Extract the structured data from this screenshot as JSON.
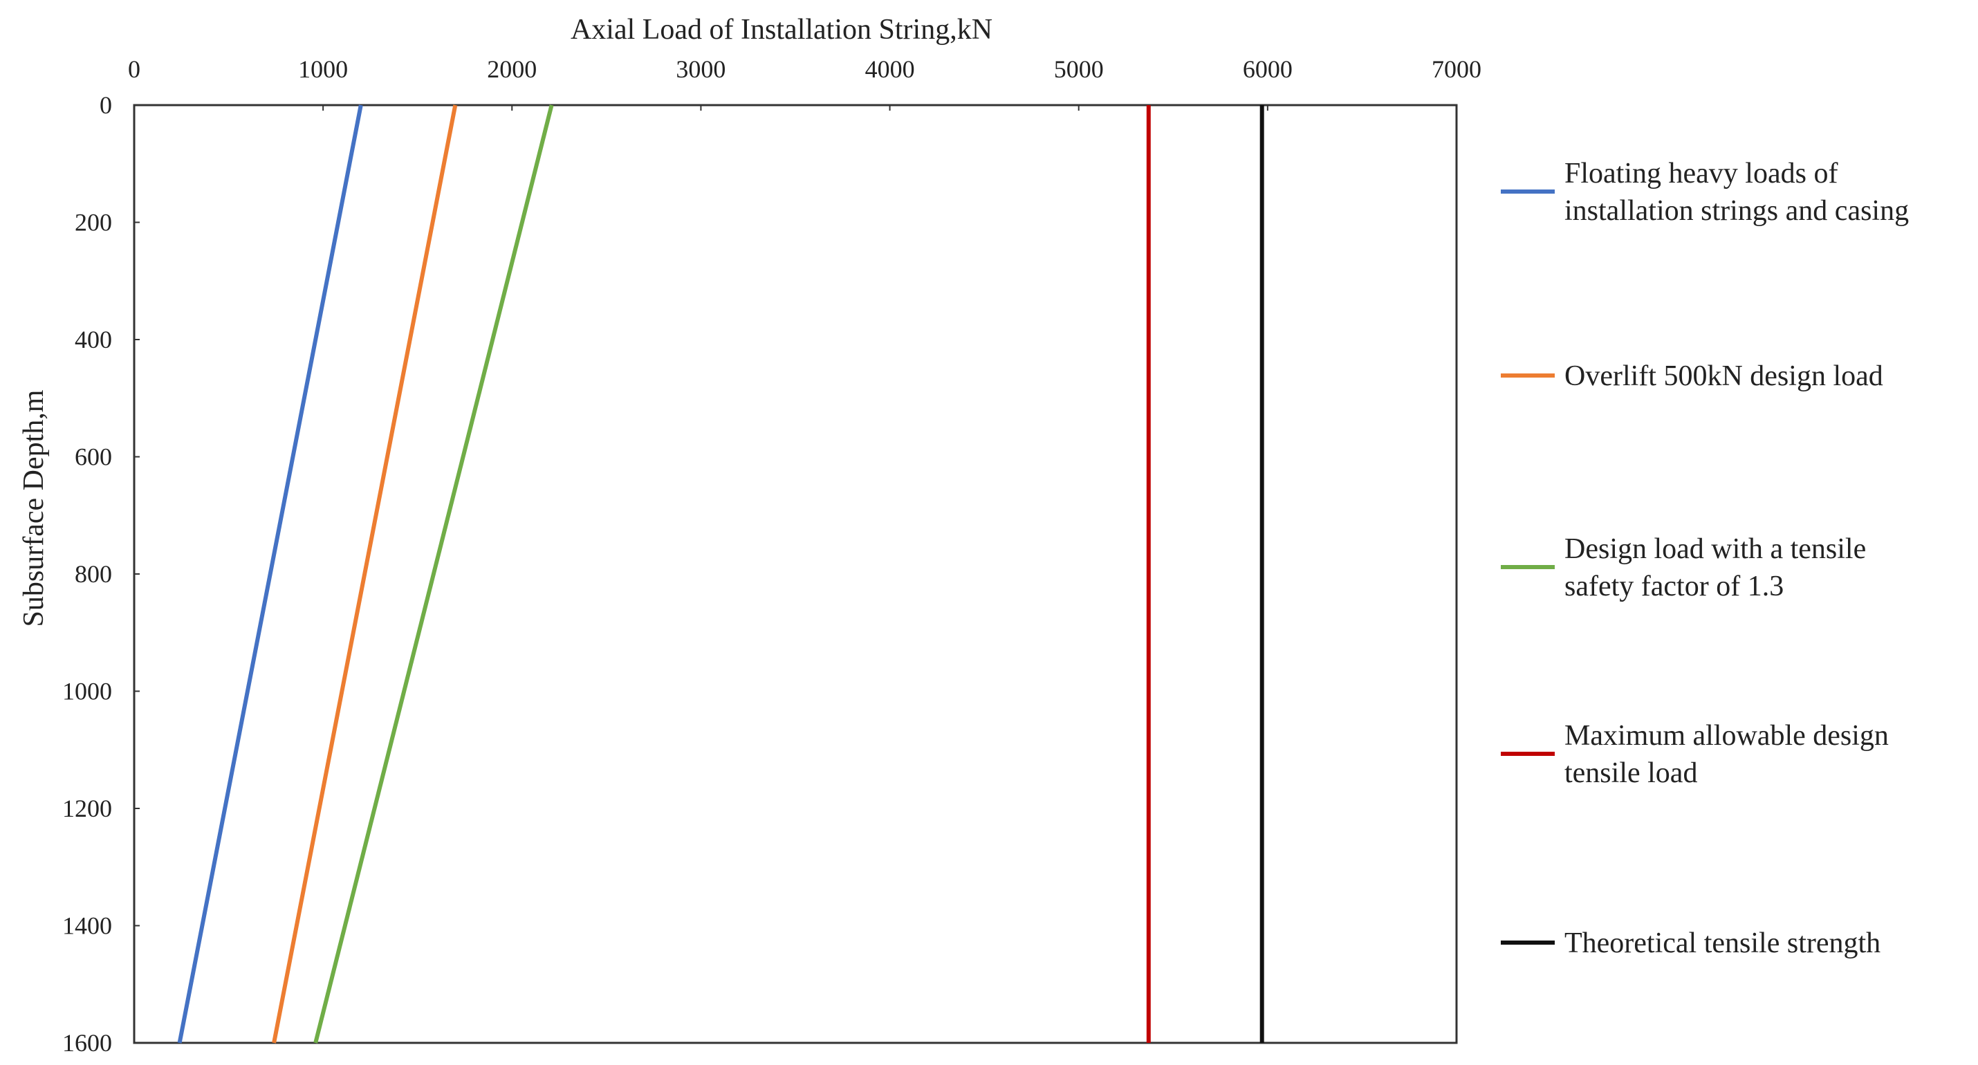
{
  "chart_data": {
    "type": "line",
    "title": "",
    "xlabel": "Axial Load of Installation String,kN",
    "ylabel": "Subsurface Depth,m",
    "xlim": [
      0,
      7000
    ],
    "ylim": [
      0,
      1600
    ],
    "y_inverted": true,
    "x_axis_position": "top",
    "x_ticks": [
      "0",
      "1000",
      "2000",
      "3000",
      "4000",
      "5000",
      "6000",
      "7000"
    ],
    "y_ticks": [
      "0",
      "200",
      "400",
      "600",
      "800",
      "1000",
      "1200",
      "1400",
      "1600"
    ],
    "grid": false,
    "legend_position": "right",
    "series": [
      {
        "name": "Floating heavy loads of installation strings and casing",
        "name_lines": [
          "Floating heavy loads of",
          "installation strings and casing"
        ],
        "color": "#4472c4",
        "points": [
          [
            1200,
            0
          ],
          [
            240,
            1600
          ]
        ]
      },
      {
        "name": "Overlift 500kN design load",
        "name_lines": [
          "Overlift 500kN design load"
        ],
        "color": "#ed7d31",
        "points": [
          [
            1700,
            0
          ],
          [
            740,
            1600
          ]
        ]
      },
      {
        "name": "Design load with a tensile safety factor of 1.3",
        "name_lines": [
          "Design load with a tensile",
          "safety factor of 1.3"
        ],
        "color": "#70ad47",
        "points": [
          [
            2210,
            0
          ],
          [
            960,
            1600
          ]
        ]
      },
      {
        "name": "Maximum allowable design tensile load",
        "name_lines": [
          "Maximum allowable design",
          "tensile load"
        ],
        "color": "#c00000",
        "points": [
          [
            5370,
            0
          ],
          [
            5370,
            1600
          ]
        ]
      },
      {
        "name": "Theoretical tensile strength",
        "name_lines": [
          "Theoretical tensile strength"
        ],
        "color": "#111111",
        "points": [
          [
            5970,
            0
          ],
          [
            5970,
            1600
          ]
        ]
      }
    ]
  }
}
